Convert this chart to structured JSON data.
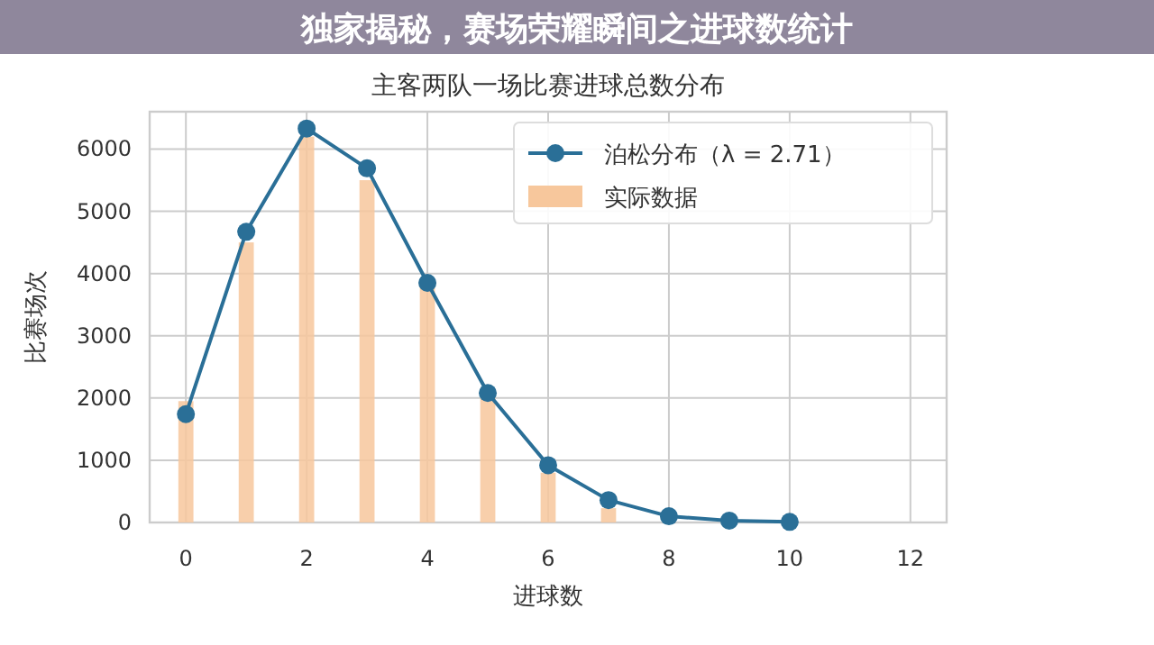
{
  "chart_data": {
    "type": "bar",
    "subtitle": "独家揭秘，赛场荣耀瞬间之进球数统计",
    "title": "主客两队一场比赛进球总数分布",
    "xlabel": "进球数",
    "ylabel": "比赛场次",
    "x": [
      0,
      1,
      2,
      3,
      4,
      5,
      6,
      7,
      8,
      9,
      10
    ],
    "series": [
      {
        "name": "泊松分布（λ = 2.71）",
        "type": "line",
        "color": "#2a6f97",
        "marker": "circle",
        "values": [
          1740,
          4670,
          6330,
          5690,
          3850,
          2080,
          920,
          360,
          100,
          30,
          10
        ]
      },
      {
        "name": "实际数据",
        "color": "#f7c79c",
        "values": [
          1950,
          4500,
          6200,
          5500,
          3800,
          2000,
          800,
          230,
          null,
          null,
          null
        ]
      }
    ],
    "xlim": [
      -0.6,
      12.6
    ],
    "xticks": [
      0,
      2,
      4,
      6,
      8,
      10,
      12
    ],
    "ylim": [
      0,
      6600
    ],
    "yticks": [
      0,
      1000,
      2000,
      3000,
      4000,
      5000,
      6000
    ],
    "grid": true,
    "legend": "top right"
  }
}
